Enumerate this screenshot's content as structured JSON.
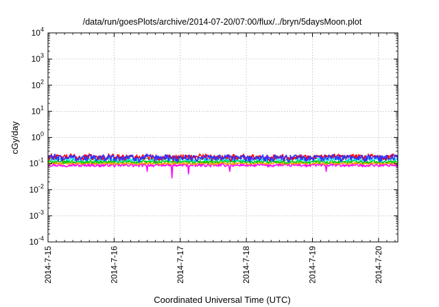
{
  "chart_data": {
    "type": "line",
    "title": "/data/run/goesPlots/archive/2014-07-20/07:00/flux/../bryn/5daysMoon.plot",
    "xlabel": "Coordinated Universal Time (UTC)",
    "ylabel": "cGy/day",
    "yscale": "log",
    "ylim": [
      0.0001,
      10000
    ],
    "xlim": [
      "2014-07-15T00:00",
      "2014-07-20T07:00"
    ],
    "grid": true,
    "x_ticks": [
      "2014-7-15",
      "2014-7-16",
      "2014-7-17",
      "2014-7-18",
      "2014-7-19",
      "2014-7-20"
    ],
    "y_ticks": [
      {
        "base": "10",
        "exp": "-4",
        "value": 0.0001
      },
      {
        "base": "10",
        "exp": "-3",
        "value": 0.001
      },
      {
        "base": "10",
        "exp": "-2",
        "value": 0.01
      },
      {
        "base": "10",
        "exp": "-1",
        "value": 0.1
      },
      {
        "base": "10",
        "exp": "0",
        "value": 1
      },
      {
        "base": "10",
        "exp": "1",
        "value": 10
      },
      {
        "base": "10",
        "exp": "2",
        "value": 100
      },
      {
        "base": "10",
        "exp": "3",
        "value": 1000
      },
      {
        "base": "10",
        "exp": "4",
        "value": 10000
      }
    ],
    "series": [
      {
        "color": "#ff00ff",
        "base_value": 0.085,
        "noise": 0.14,
        "dips": [
          [
            "2014-07-16T12:00",
            0.05
          ],
          [
            "2014-07-16T21:00",
            0.028
          ],
          [
            "2014-07-17T03:00",
            0.04
          ],
          [
            "2014-07-17T18:00",
            0.05
          ],
          [
            "2014-07-19T05:00",
            0.05
          ]
        ]
      },
      {
        "color": "#ff9900",
        "base_value": 0.1,
        "noise": 0.12,
        "dips": []
      },
      {
        "color": "#00cc00",
        "base_value": 0.115,
        "noise": 0.14,
        "dips": []
      },
      {
        "color": "#00e0e0",
        "base_value": 0.14,
        "noise": 0.18,
        "dips": []
      },
      {
        "color": "#ff0000",
        "base_value": 0.175,
        "noise": 0.3,
        "dips": []
      },
      {
        "color": "#3333ff",
        "base_value": 0.165,
        "noise": 0.32,
        "dips": []
      }
    ]
  }
}
